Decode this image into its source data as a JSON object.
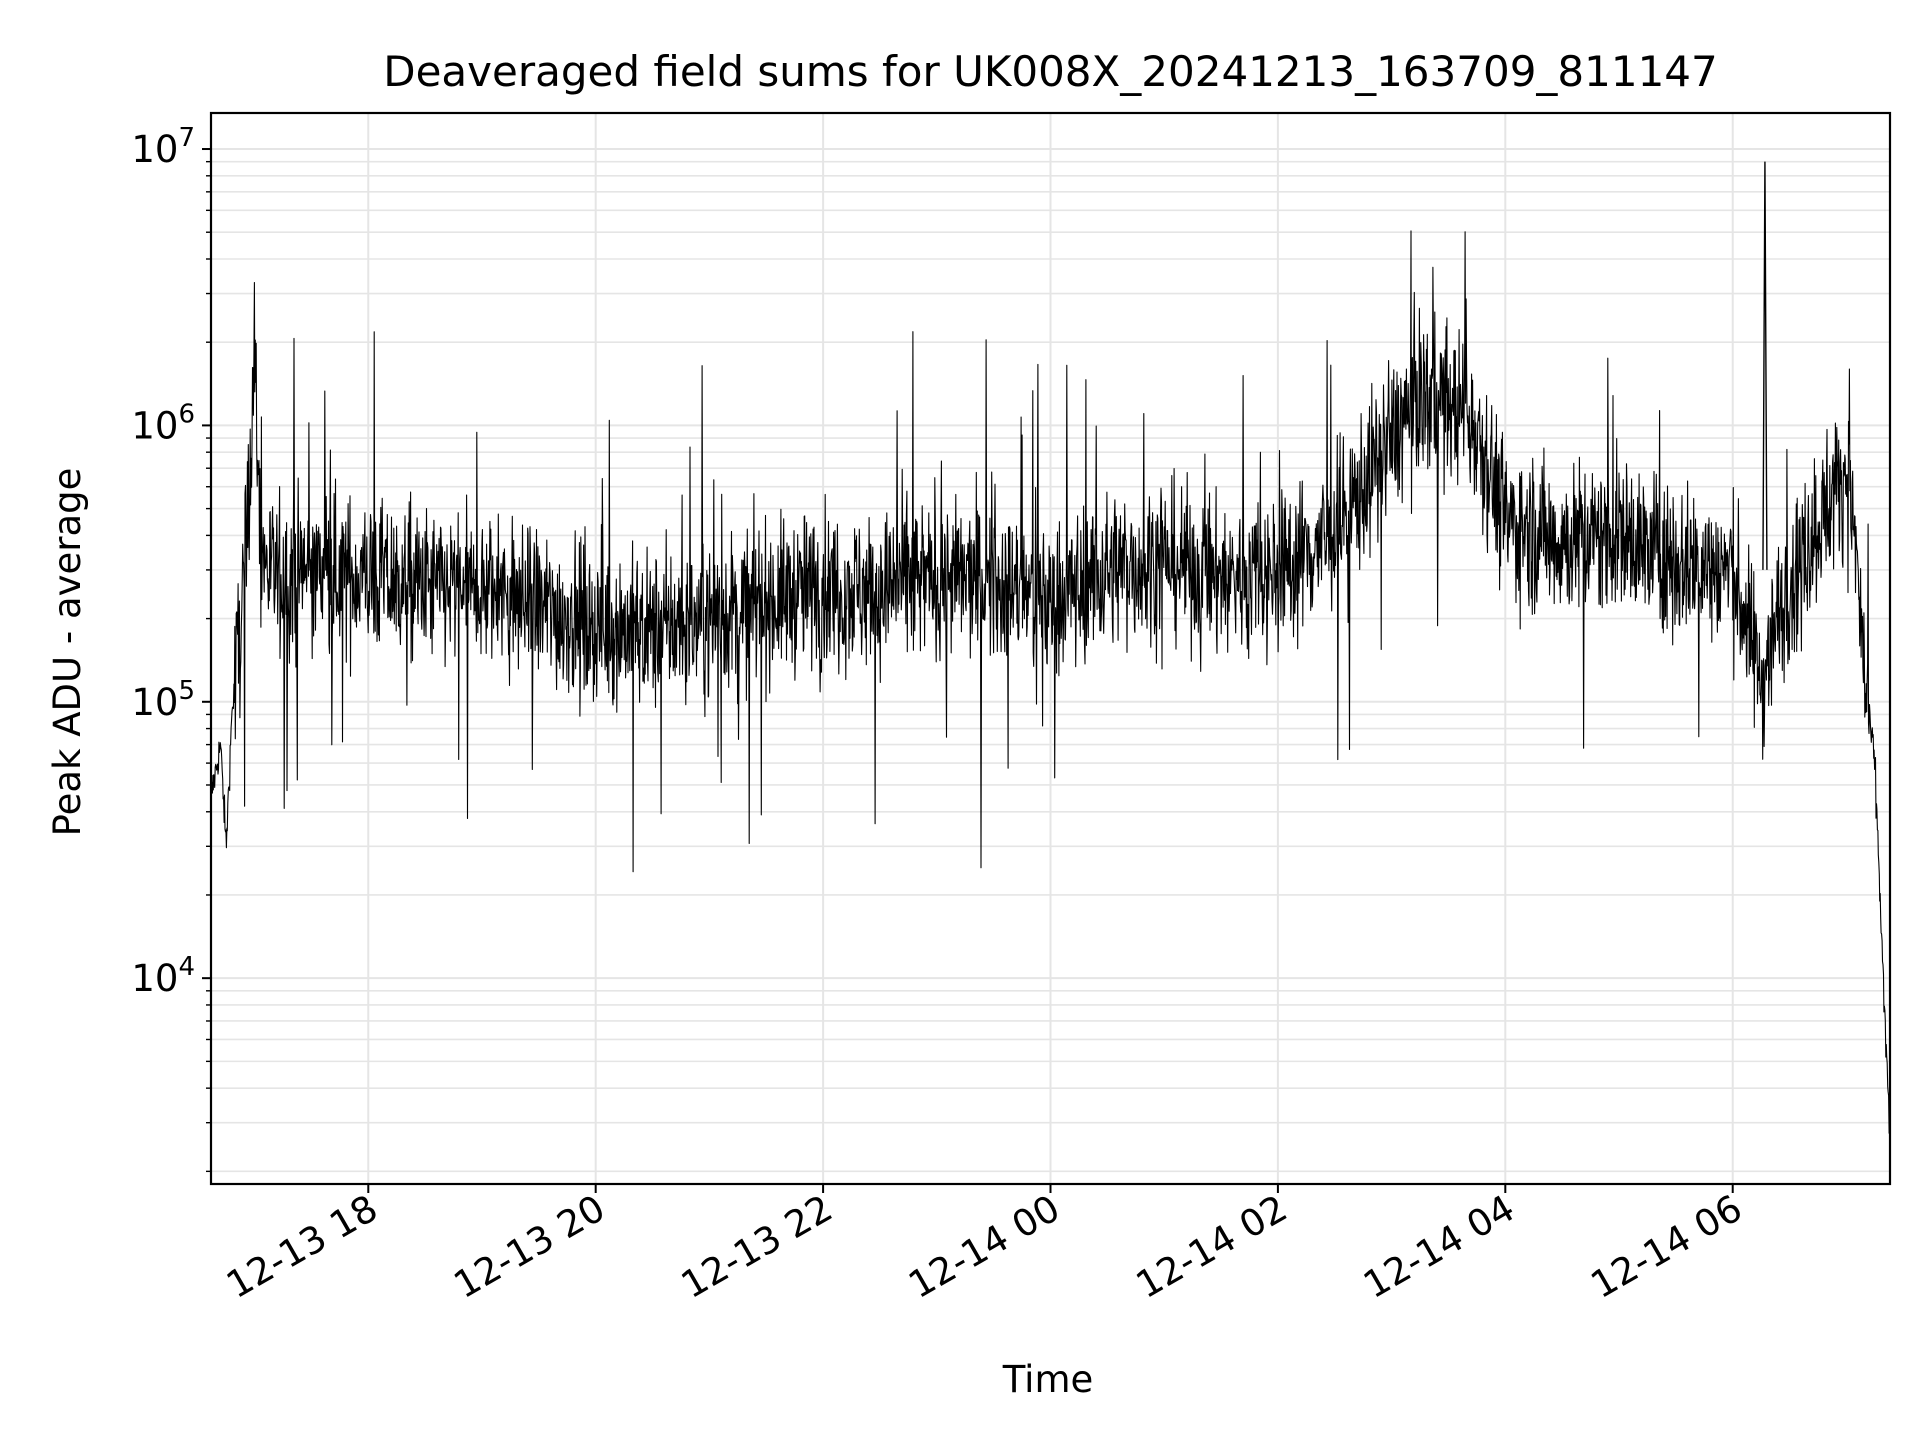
{
  "chart_data": {
    "type": "line",
    "title": "Deaveraged field sums for UK008X_20241213_163709_811147",
    "xlabel": "Time",
    "ylabel": "Peak ADU - average",
    "yscale": "log",
    "grid": true,
    "legend": "none",
    "colors": {
      "line": "#000000",
      "grid": "#e5e5e5",
      "background": "#ffffff"
    },
    "xlim": [
      "2024-12-13 16:37",
      "2024-12-14 07:23"
    ],
    "ylim": [
      1800,
      13500000
    ],
    "x_ticks": [
      {
        "time": "2024-12-13 18:00",
        "label": "12-13 18"
      },
      {
        "time": "2024-12-13 20:00",
        "label": "12-13 20"
      },
      {
        "time": "2024-12-13 22:00",
        "label": "12-13 22"
      },
      {
        "time": "2024-12-14 00:00",
        "label": "12-14 00"
      },
      {
        "time": "2024-12-14 02:00",
        "label": "12-14 02"
      },
      {
        "time": "2024-12-14 04:00",
        "label": "12-14 04"
      },
      {
        "time": "2024-12-14 06:00",
        "label": "12-14 06"
      }
    ],
    "y_ticks": [
      {
        "value": 10000,
        "base": "10",
        "exp": "4"
      },
      {
        "value": 100000,
        "base": "10",
        "exp": "5"
      },
      {
        "value": 1000000,
        "base": "10",
        "exp": "6"
      },
      {
        "value": 10000000,
        "base": "10",
        "exp": "7"
      }
    ],
    "series": [
      {
        "values": [
          [
            "2024-12-13 16:37",
            45000
          ],
          [
            "2024-12-13 16:42",
            70000
          ],
          [
            "2024-12-13 16:45",
            30000
          ],
          [
            "2024-12-13 16:48",
            90000
          ],
          [
            "2024-12-13 16:52",
            170000
          ],
          [
            "2024-12-13 16:55",
            300000
          ],
          [
            "2024-12-13 16:58",
            900000
          ],
          [
            "2024-12-13 17:00",
            1900000
          ],
          [
            "2024-12-13 17:03",
            350000
          ],
          [
            "2024-12-13 17:10",
            280000
          ],
          [
            "2024-12-13 17:30",
            300000
          ],
          [
            "2024-12-13 18:00",
            280000
          ],
          [
            "2024-12-13 18:30",
            260000
          ],
          [
            "2024-12-13 19:00",
            250000
          ],
          [
            "2024-12-13 19:30",
            220000
          ],
          [
            "2024-12-13 20:00",
            190000
          ],
          [
            "2024-12-13 20:30",
            180000
          ],
          [
            "2024-12-13 21:00",
            200000
          ],
          [
            "2024-12-13 21:30",
            230000
          ],
          [
            "2024-12-13 22:00",
            260000
          ],
          [
            "2024-12-13 22:30",
            250000
          ],
          [
            "2024-12-13 23:00",
            280000
          ],
          [
            "2024-12-13 23:30",
            270000
          ],
          [
            "2024-12-14 00:00",
            230000
          ],
          [
            "2024-12-14 00:30",
            300000
          ],
          [
            "2024-12-14 01:00",
            330000
          ],
          [
            "2024-12-14 01:30",
            280000
          ],
          [
            "2024-12-14 02:00",
            300000
          ],
          [
            "2024-12-14 02:30",
            400000
          ],
          [
            "2024-12-14 03:00",
            900000
          ],
          [
            "2024-12-14 03:15",
            1300000
          ],
          [
            "2024-12-14 03:30",
            1200000
          ],
          [
            "2024-12-14 03:45",
            1000000
          ],
          [
            "2024-12-14 04:00",
            450000
          ],
          [
            "2024-12-14 04:30",
            380000
          ],
          [
            "2024-12-14 05:00",
            400000
          ],
          [
            "2024-12-14 05:30",
            320000
          ],
          [
            "2024-12-14 06:00",
            300000
          ],
          [
            "2024-12-14 06:15",
            120000
          ],
          [
            "2024-12-14 06:30",
            280000
          ],
          [
            "2024-12-14 07:00",
            700000
          ],
          [
            "2024-12-14 07:05",
            350000
          ],
          [
            "2024-12-14 07:10",
            110000
          ],
          [
            "2024-12-14 07:15",
            60000
          ],
          [
            "2024-12-14 07:20",
            8000
          ],
          [
            "2024-12-14 07:23",
            2500
          ]
        ]
      }
    ]
  }
}
